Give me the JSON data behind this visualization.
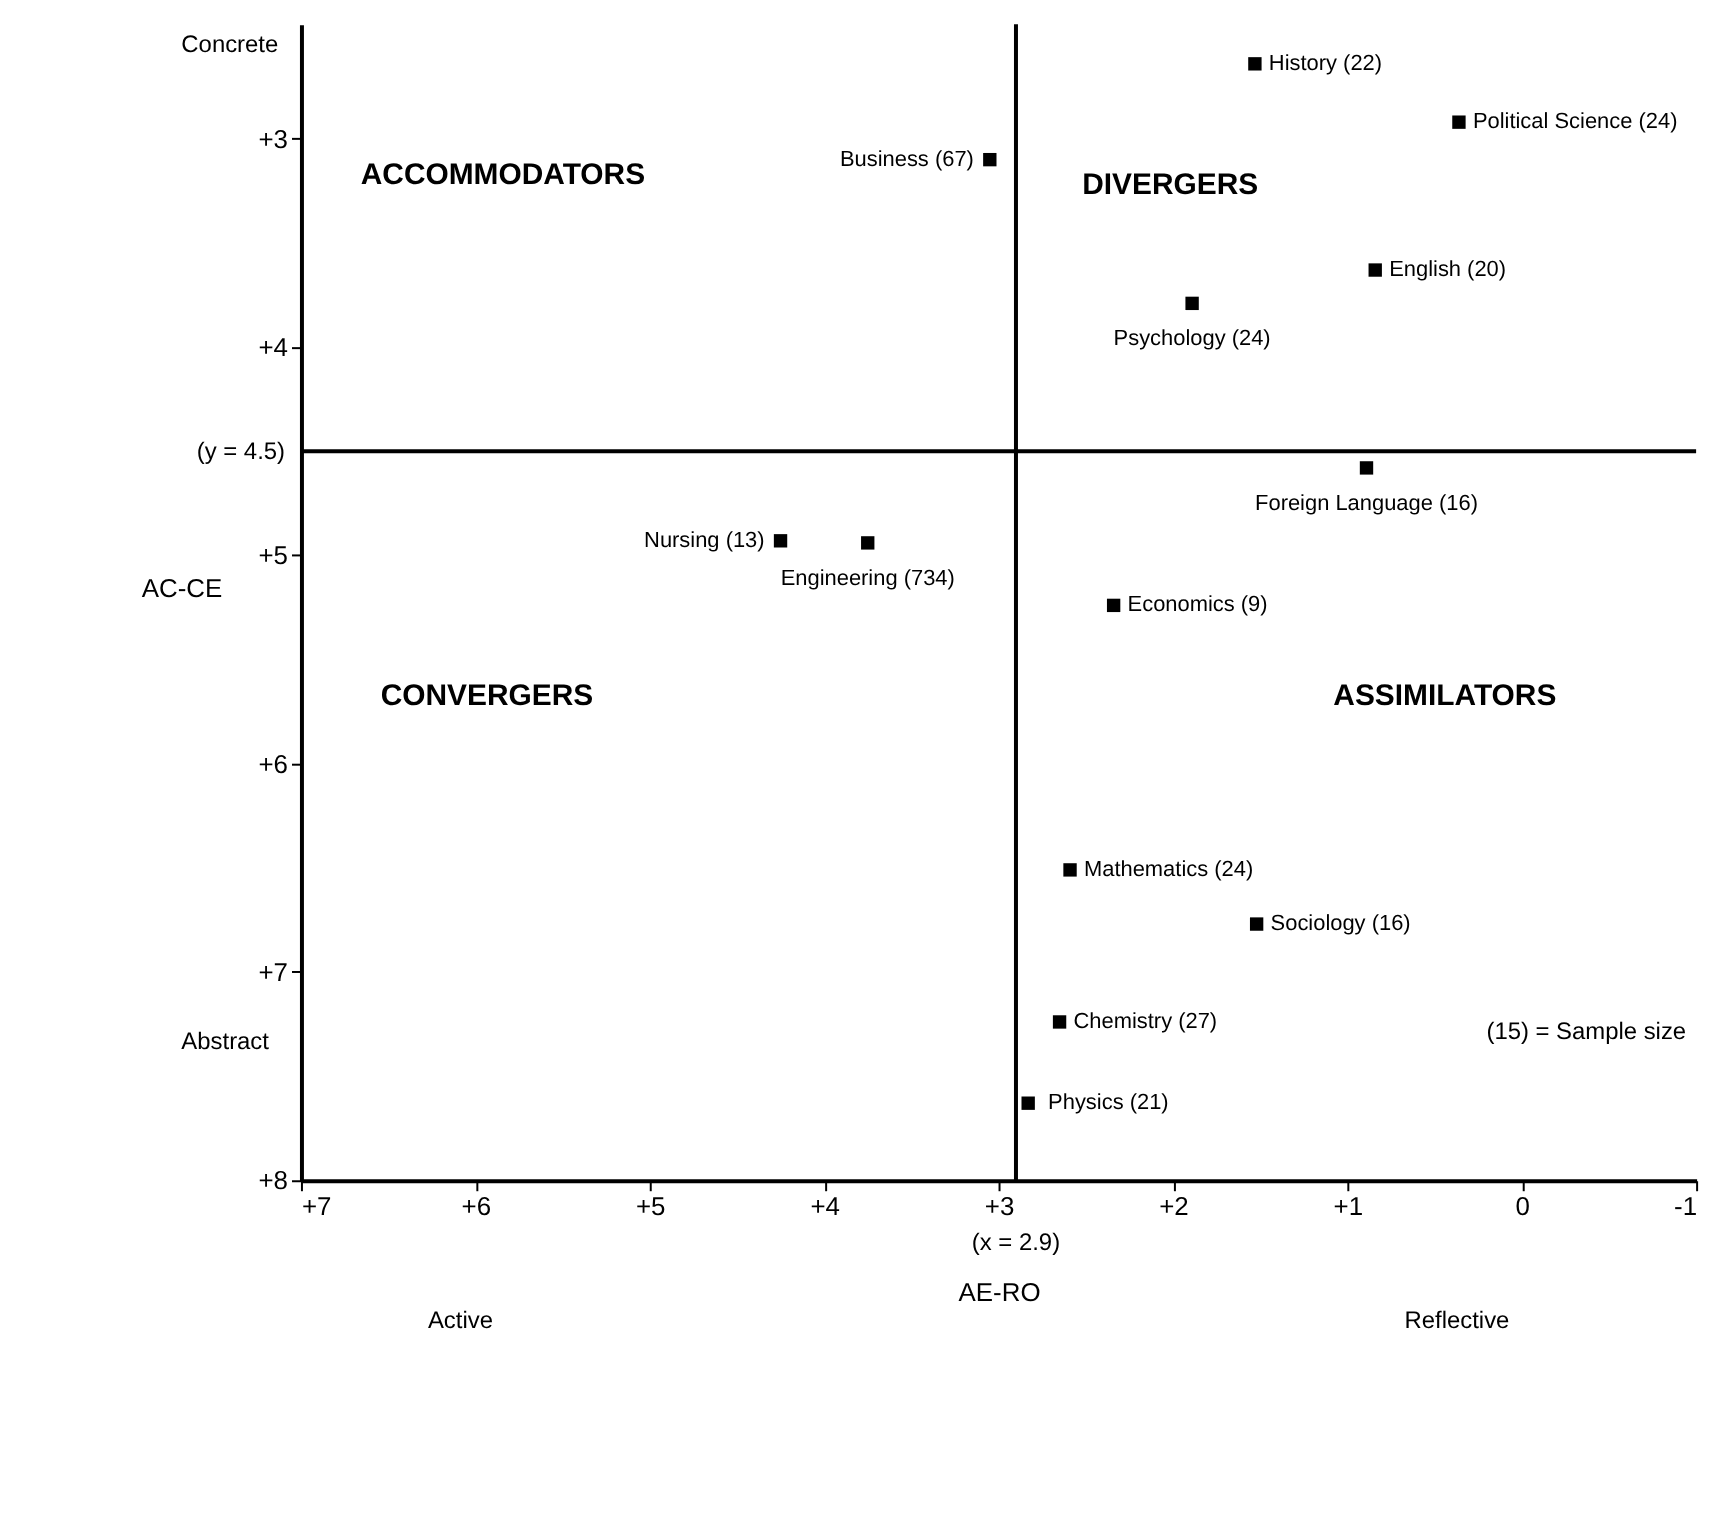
{
  "chart_data": {
    "type": "scatter",
    "xlabel": "AE-RO",
    "ylabel": "AC-CE",
    "x": [
      1.53,
      0.36,
      3.05,
      0.84,
      1.89,
      0.89,
      4.25,
      3.75,
      2.34,
      2.59,
      1.52,
      2.65,
      2.83
    ],
    "series": [
      {
        "color": "#000000",
        "values": [
          2.64,
          2.92,
          3.1,
          3.63,
          3.79,
          4.58,
          4.93,
          4.94,
          5.24,
          6.51,
          6.77,
          7.24,
          7.63
        ]
      }
    ],
    "value_labels": [
      "History (22)",
      "Political Science (24)",
      "Business (67)",
      "English (20)",
      "Psychology (24)",
      "Foreign Language (16)",
      "Nursing (13)",
      "Engineering (734)",
      "Economics (9)",
      "Mathematics (24)",
      "Sociology (16)",
      "Chemistry (27)",
      "Physics (21)"
    ],
    "marker": "square",
    "grid": false,
    "xlim": [
      7,
      -1
    ],
    "ylim": [
      8,
      2.45
    ],
    "xticks": [
      {
        "value": 7,
        "label": "+7"
      },
      {
        "value": 6,
        "label": "+6"
      },
      {
        "value": 5,
        "label": "+5"
      },
      {
        "value": 4,
        "label": "+4"
      },
      {
        "value": 3,
        "label": "+3"
      },
      {
        "value": 2,
        "label": "+2"
      },
      {
        "value": 1,
        "label": "+1"
      },
      0,
      -1
    ],
    "yticks": [
      {
        "value": 3,
        "label": "+3"
      },
      {
        "value": 4,
        "label": "+4"
      },
      {
        "value": 5,
        "label": "+5"
      },
      {
        "value": 6,
        "label": "+6"
      },
      {
        "value": 7,
        "label": "+7"
      },
      {
        "value": 8,
        "label": "+8"
      }
    ],
    "ref_lines": [
      {
        "axis": "x",
        "value": 2.9,
        "label": "(x = 2.9)",
        "color": "#000000"
      },
      {
        "axis": "y",
        "value": 4.5,
        "label": "(y = 4.5)",
        "color": "#000000"
      }
    ],
    "annotations": [
      "ACCOMMODATORS",
      "DIVERGERS",
      "CONVERGERS",
      "ASSIMILATORS",
      "Concrete",
      "Abstract",
      "Active",
      "Reflective",
      "(15) = Sample size"
    ]
  }
}
